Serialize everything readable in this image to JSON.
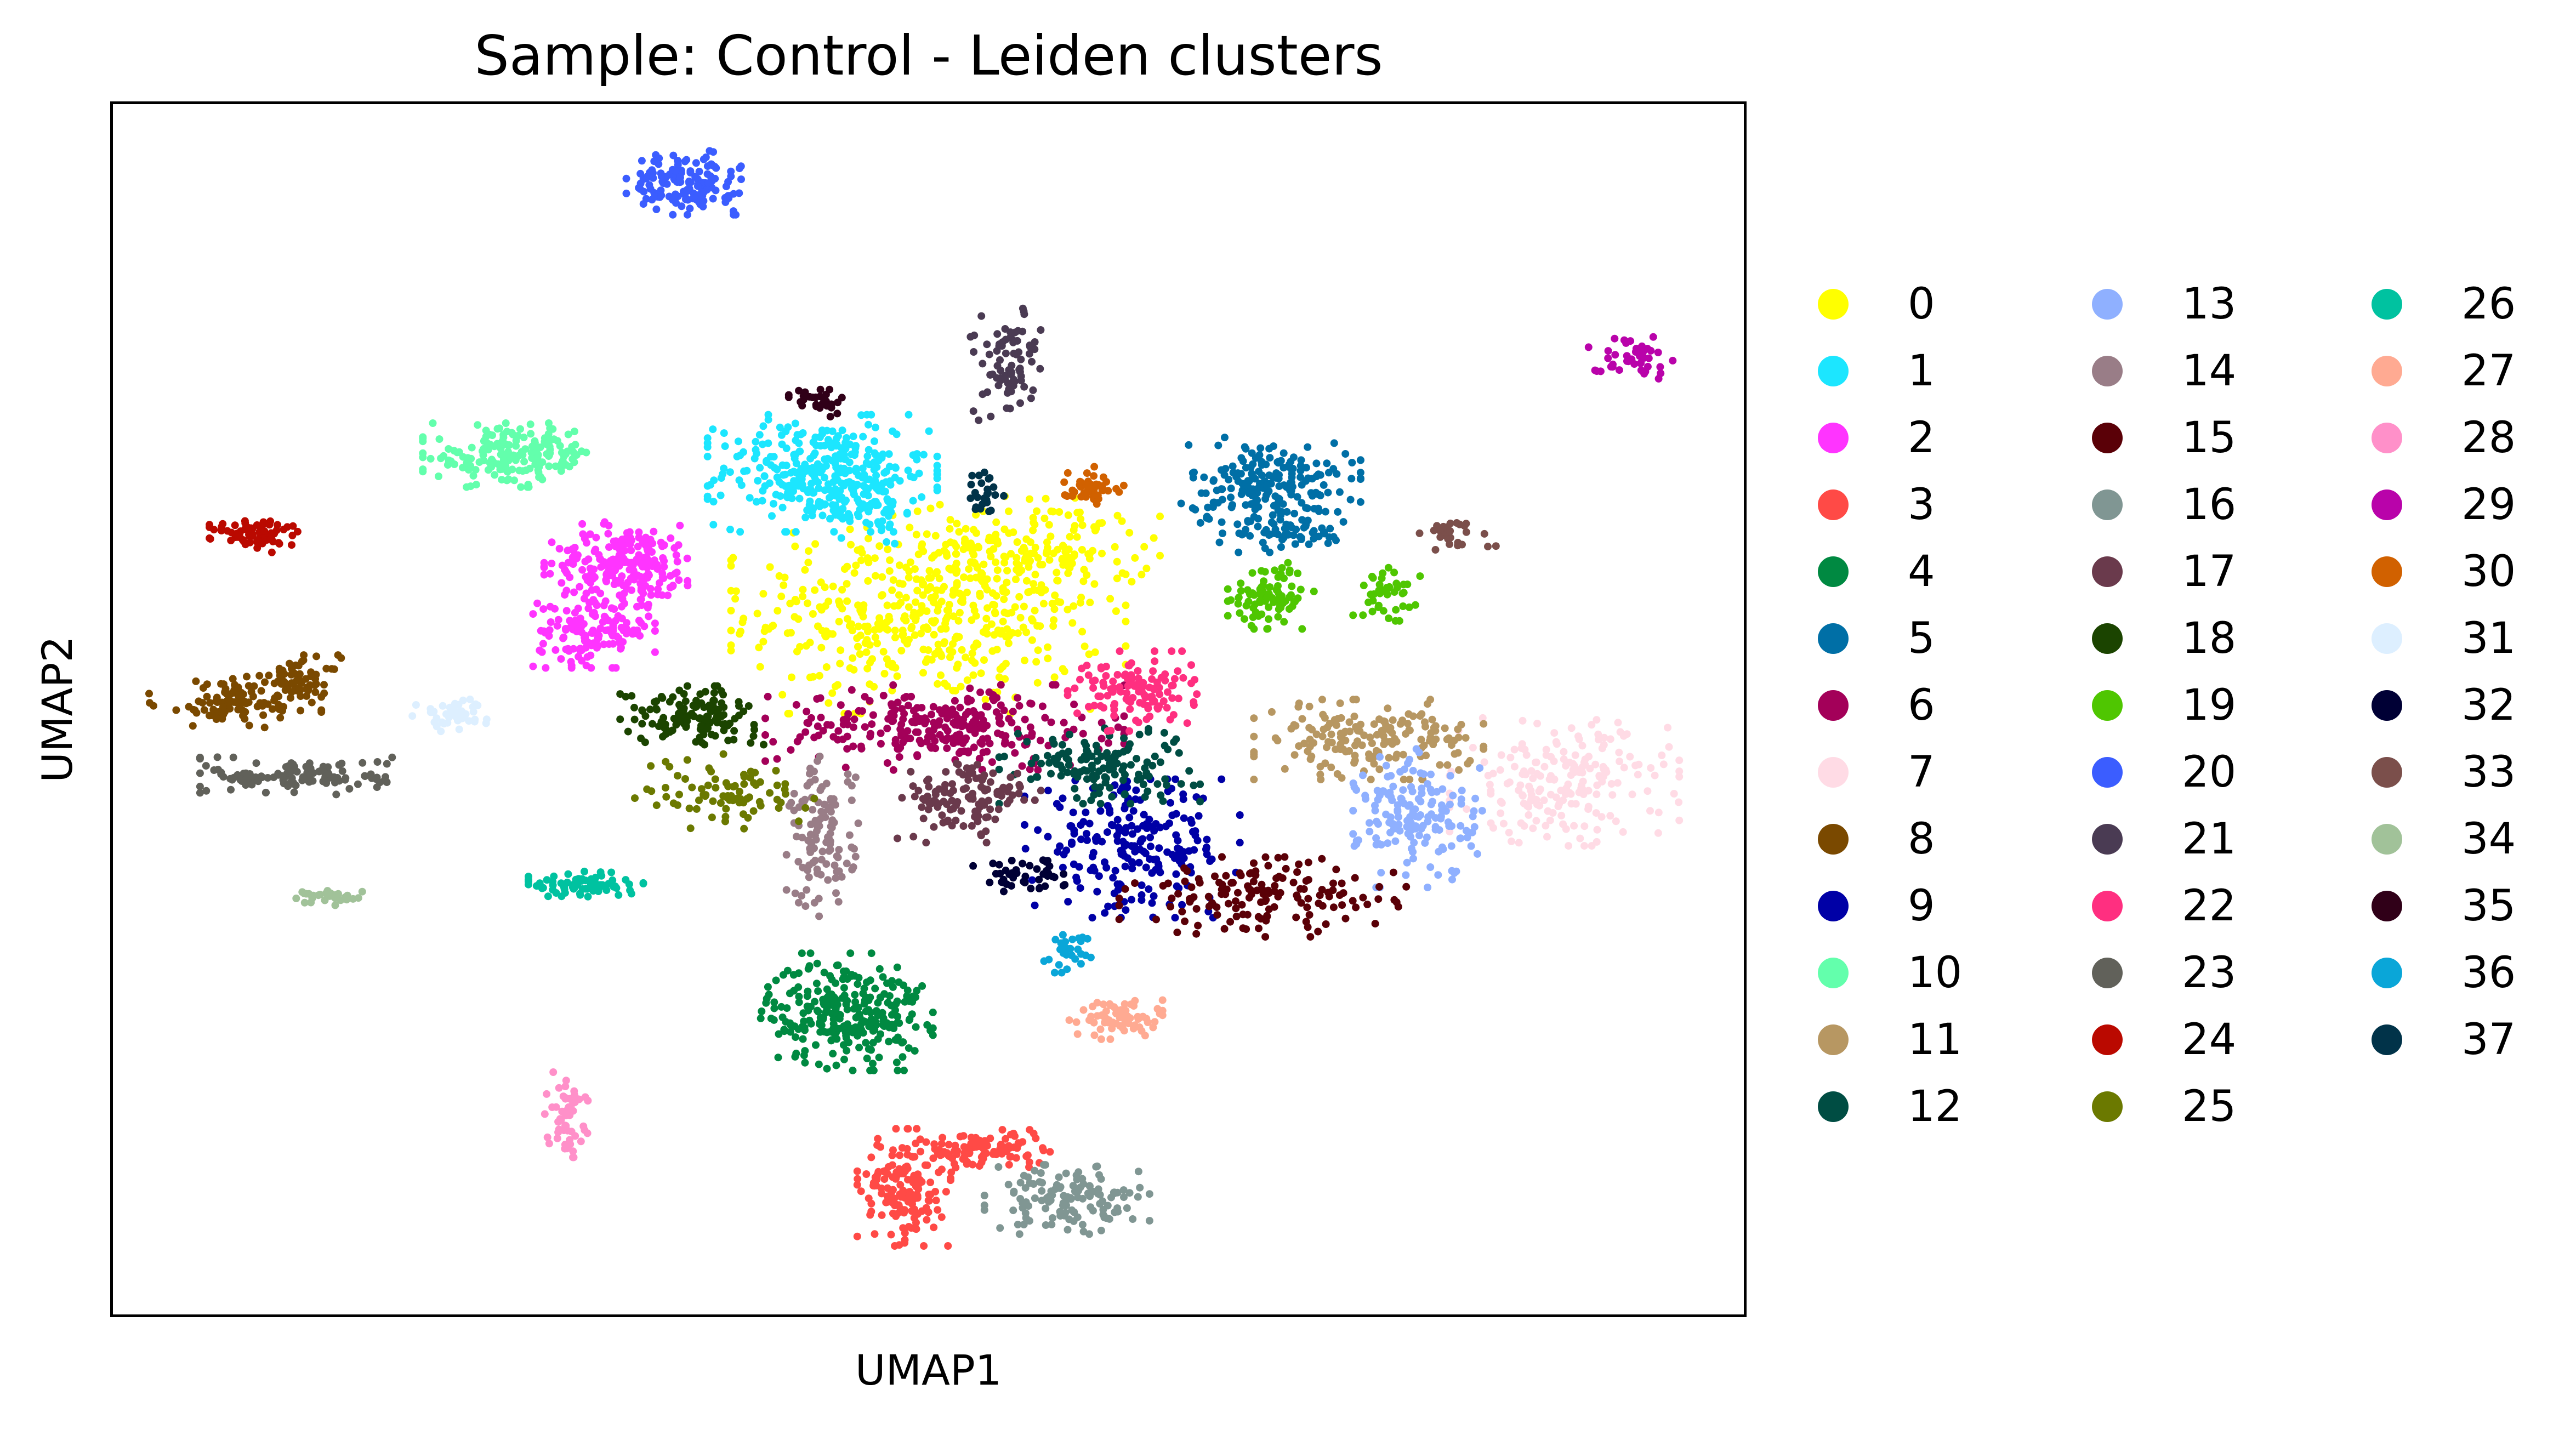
{
  "chart_data": {
    "type": "scatter",
    "title": "Sample: Control - Leiden clusters",
    "xlabel": "UMAP1",
    "ylabel": "UMAP2",
    "xlim": [
      0,
      100
    ],
    "ylim": [
      0,
      100
    ],
    "axis_ticks": "none",
    "grid": false,
    "legend": {
      "placement": "right, outside plot",
      "columns": 3
    },
    "series": [
      {
        "name": "0",
        "color": "#FFFF00",
        "clusters": [
          {
            "x": 50.0,
            "y": 58.0,
            "sx": 5.5,
            "sy": 3.8,
            "n": 480
          },
          {
            "x": 56.5,
            "y": 63.0,
            "sx": 3.5,
            "sy": 2.2,
            "n": 140
          }
        ]
      },
      {
        "name": "1",
        "color": "#1CE6FF",
        "clusters": [
          {
            "x": 43.5,
            "y": 69.5,
            "sx": 3.2,
            "sy": 2.2,
            "n": 330
          },
          {
            "x": 46.5,
            "y": 66.5,
            "sx": 1.0,
            "sy": 1.5,
            "n": 50
          }
        ]
      },
      {
        "name": "2",
        "color": "#FF34FF",
        "clusters": [
          {
            "x": 31.5,
            "y": 62.0,
            "sx": 2.3,
            "sy": 1.6,
            "n": 220
          },
          {
            "x": 29.5,
            "y": 56.5,
            "sx": 1.7,
            "sy": 1.4,
            "n": 140
          }
        ]
      },
      {
        "name": "3",
        "color": "#FF4A46",
        "clusters": [
          {
            "x": 48.5,
            "y": 10.5,
            "sx": 1.3,
            "sy": 2.2,
            "n": 160
          },
          {
            "x": 53.5,
            "y": 13.5,
            "sx": 1.8,
            "sy": 0.8,
            "n": 100
          }
        ]
      },
      {
        "name": "4",
        "color": "#008941",
        "clusters": [
          {
            "x": 45.0,
            "y": 25.0,
            "sx": 2.4,
            "sy": 2.2,
            "n": 270
          }
        ]
      },
      {
        "name": "5",
        "color": "#006FA6",
        "clusters": [
          {
            "x": 71.0,
            "y": 68.5,
            "sx": 2.5,
            "sy": 1.8,
            "n": 200
          },
          {
            "x": 72.0,
            "y": 64.5,
            "sx": 2.0,
            "sy": 0.7,
            "n": 50
          }
        ]
      },
      {
        "name": "6",
        "color": "#A30059",
        "clusters": [
          {
            "x": 51.0,
            "y": 48.5,
            "sx": 5.0,
            "sy": 1.6,
            "n": 280
          }
        ]
      },
      {
        "name": "7",
        "color": "#FFDBE5",
        "clusters": [
          {
            "x": 89.0,
            "y": 44.0,
            "sx": 3.2,
            "sy": 2.4,
            "n": 200
          }
        ]
      },
      {
        "name": "8",
        "color": "#7A4900",
        "clusters": [
          {
            "x": 7.5,
            "y": 50.5,
            "sx": 2.4,
            "sy": 1.0,
            "n": 100
          },
          {
            "x": 11.5,
            "y": 52.5,
            "sx": 1.2,
            "sy": 0.9,
            "n": 60
          }
        ]
      },
      {
        "name": "9",
        "color": "#0000A6",
        "clusters": [
          {
            "x": 62.5,
            "y": 38.5,
            "sx": 3.0,
            "sy": 2.6,
            "n": 220
          }
        ]
      },
      {
        "name": "10",
        "color": "#63FFAC",
        "clusters": [
          {
            "x": 24.5,
            "y": 71.0,
            "sx": 2.5,
            "sy": 1.2,
            "n": 180
          }
        ]
      },
      {
        "name": "11",
        "color": "#B79762",
        "clusters": [
          {
            "x": 77.0,
            "y": 47.5,
            "sx": 3.2,
            "sy": 1.5,
            "n": 170
          }
        ]
      },
      {
        "name": "12",
        "color": "#004D43",
        "clusters": [
          {
            "x": 60.5,
            "y": 45.5,
            "sx": 2.8,
            "sy": 1.5,
            "n": 140
          }
        ]
      },
      {
        "name": "13",
        "color": "#8FB0FF",
        "clusters": [
          {
            "x": 80.0,
            "y": 41.0,
            "sx": 1.8,
            "sy": 2.6,
            "n": 160
          }
        ]
      },
      {
        "name": "14",
        "color": "#997D87",
        "clusters": [
          {
            "x": 43.5,
            "y": 39.5,
            "sx": 1.0,
            "sy": 3.0,
            "n": 120
          }
        ]
      },
      {
        "name": "15",
        "color": "#5A0007",
        "clusters": [
          {
            "x": 70.5,
            "y": 34.5,
            "sx": 4.0,
            "sy": 1.5,
            "n": 150
          }
        ]
      },
      {
        "name": "16",
        "color": "#809693",
        "clusters": [
          {
            "x": 58.5,
            "y": 9.5,
            "sx": 2.3,
            "sy": 1.3,
            "n": 130
          }
        ]
      },
      {
        "name": "17",
        "color": "#6A3A4C",
        "clusters": [
          {
            "x": 52.5,
            "y": 42.5,
            "sx": 2.0,
            "sy": 1.6,
            "n": 120
          }
        ]
      },
      {
        "name": "18",
        "color": "#1B4400",
        "clusters": [
          {
            "x": 35.5,
            "y": 49.5,
            "sx": 2.0,
            "sy": 1.1,
            "n": 130
          }
        ]
      },
      {
        "name": "19",
        "color": "#4FC601",
        "clusters": [
          {
            "x": 71.0,
            "y": 59.5,
            "sx": 1.2,
            "sy": 1.3,
            "n": 90
          },
          {
            "x": 78.0,
            "y": 59.5,
            "sx": 1.0,
            "sy": 1.0,
            "n": 40
          }
        ]
      },
      {
        "name": "20",
        "color": "#3B5DFF",
        "clusters": [
          {
            "x": 35.0,
            "y": 93.5,
            "sx": 1.6,
            "sy": 1.2,
            "n": 150
          }
        ]
      },
      {
        "name": "21",
        "color": "#4A3B53",
        "clusters": [
          {
            "x": 55.0,
            "y": 78.5,
            "sx": 1.1,
            "sy": 2.1,
            "n": 80
          }
        ]
      },
      {
        "name": "22",
        "color": "#FF2F80",
        "clusters": [
          {
            "x": 62.5,
            "y": 51.5,
            "sx": 1.8,
            "sy": 1.5,
            "n": 120
          }
        ]
      },
      {
        "name": "23",
        "color": "#61615A",
        "clusters": [
          {
            "x": 11.5,
            "y": 44.5,
            "sx": 2.8,
            "sy": 0.7,
            "n": 120
          }
        ]
      },
      {
        "name": "24",
        "color": "#BA0900",
        "clusters": [
          {
            "x": 9.0,
            "y": 64.5,
            "sx": 1.4,
            "sy": 0.7,
            "n": 75
          }
        ]
      },
      {
        "name": "25",
        "color": "#6B7900",
        "clusters": [
          {
            "x": 37.5,
            "y": 43.0,
            "sx": 2.5,
            "sy": 1.5,
            "n": 80
          }
        ]
      },
      {
        "name": "26",
        "color": "#00C2A0",
        "clusters": [
          {
            "x": 29.0,
            "y": 35.5,
            "sx": 1.6,
            "sy": 0.5,
            "n": 75
          }
        ]
      },
      {
        "name": "27",
        "color": "#FFAA92",
        "clusters": [
          {
            "x": 61.5,
            "y": 24.5,
            "sx": 1.3,
            "sy": 0.8,
            "n": 65
          }
        ]
      },
      {
        "name": "28",
        "color": "#FF90C9",
        "clusters": [
          {
            "x": 27.8,
            "y": 16.5,
            "sx": 0.6,
            "sy": 1.6,
            "n": 55
          }
        ]
      },
      {
        "name": "29",
        "color": "#B903AA",
        "clusters": [
          {
            "x": 93.0,
            "y": 79.0,
            "sx": 1.2,
            "sy": 0.8,
            "n": 45
          }
        ]
      },
      {
        "name": "30",
        "color": "#D16100",
        "clusters": [
          {
            "x": 60.0,
            "y": 68.5,
            "sx": 0.9,
            "sy": 0.7,
            "n": 45
          }
        ]
      },
      {
        "name": "31",
        "color": "#DDEFFF",
        "clusters": [
          {
            "x": 21.0,
            "y": 49.5,
            "sx": 1.2,
            "sy": 0.6,
            "n": 45
          }
        ]
      },
      {
        "name": "32",
        "color": "#000035",
        "clusters": [
          {
            "x": 55.5,
            "y": 36.5,
            "sx": 1.3,
            "sy": 0.8,
            "n": 45
          }
        ]
      },
      {
        "name": "33",
        "color": "#7B4F4B",
        "clusters": [
          {
            "x": 82.0,
            "y": 64.5,
            "sx": 1.3,
            "sy": 0.6,
            "n": 30
          }
        ]
      },
      {
        "name": "34",
        "color": "#A1C299",
        "clusters": [
          {
            "x": 13.2,
            "y": 34.5,
            "sx": 1.2,
            "sy": 0.35,
            "n": 35
          }
        ]
      },
      {
        "name": "35",
        "color": "#300018",
        "clusters": [
          {
            "x": 43.2,
            "y": 75.5,
            "sx": 0.8,
            "sy": 0.6,
            "n": 30
          }
        ]
      },
      {
        "name": "36",
        "color": "#0AA6D8",
        "clusters": [
          {
            "x": 58.5,
            "y": 30.0,
            "sx": 0.7,
            "sy": 0.8,
            "n": 30
          }
        ]
      },
      {
        "name": "37",
        "color": "#013349",
        "clusters": [
          {
            "x": 53.5,
            "y": 68.0,
            "sx": 0.6,
            "sy": 1.0,
            "n": 25
          }
        ]
      }
    ]
  }
}
